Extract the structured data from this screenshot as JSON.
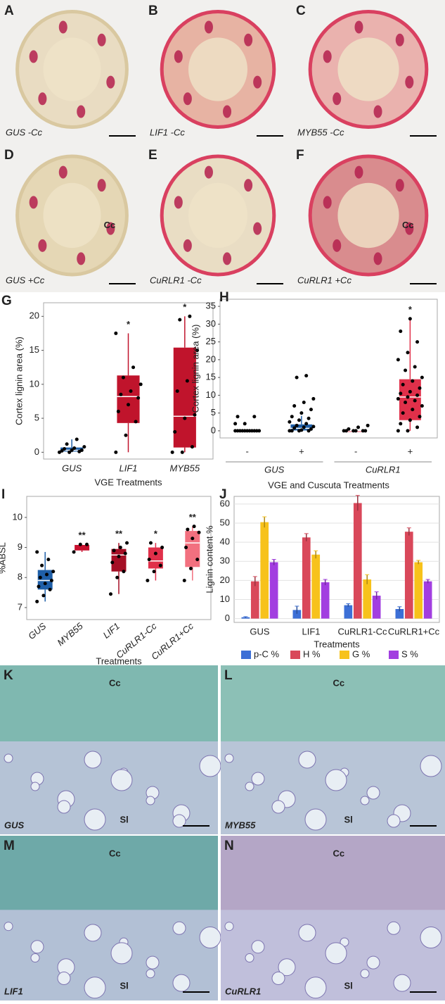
{
  "photos": [
    {
      "letter": "A",
      "caption": "GUS -Cc"
    },
    {
      "letter": "B",
      "caption": "LIF1 -Cc"
    },
    {
      "letter": "C",
      "caption": "MYB55 -Cc"
    },
    {
      "letter": "D",
      "caption": "GUS +Cc",
      "marks": [
        "Cc"
      ]
    },
    {
      "letter": "E",
      "caption": "CuRLR1 -Cc"
    },
    {
      "letter": "F",
      "caption": "CuRLR1 +Cc",
      "marks": [
        "Cc"
      ]
    }
  ],
  "micrographs": [
    {
      "letter": "K",
      "caption": "GUS",
      "marks": [
        "Cc",
        "Sl"
      ]
    },
    {
      "letter": "L",
      "caption": "MYB55",
      "marks": [
        "Cc",
        "Sl"
      ]
    },
    {
      "letter": "M",
      "caption": "LIF1",
      "marks": [
        "Cc",
        "Sl"
      ]
    },
    {
      "letter": "N",
      "caption": "CuRLR1",
      "marks": [
        "Cc",
        "Sl"
      ]
    }
  ],
  "chart_data": [
    {
      "type": "box",
      "letter": "G",
      "ylabel": "Cortex lignin area (%)",
      "xlabel": "VGE Treatments",
      "categories": [
        "GUS",
        "LIF1",
        "MYB55"
      ],
      "colors": [
        "#1f5fa8",
        "#c0142c",
        "#c0142c"
      ],
      "boxes": [
        {
          "min": 0,
          "q1": 0.1,
          "median": 0.3,
          "q3": 0.7,
          "max": 1.9
        },
        {
          "min": 0,
          "q1": 4.3,
          "median": 8.2,
          "q3": 11.3,
          "max": 17.5
        },
        {
          "min": 0,
          "q1": 0.7,
          "median": 5.3,
          "q3": 15.4,
          "max": 20
        }
      ],
      "points": [
        [
          0,
          0,
          0.1,
          0.2,
          0.3,
          0.3,
          0.5,
          0.6,
          0.8,
          1.2,
          1.9
        ],
        [
          0,
          2.5,
          4.5,
          6,
          7,
          8,
          8.5,
          9,
          10,
          11,
          12.5,
          17.5
        ],
        [
          0,
          0,
          0.8,
          3,
          5,
          5.5,
          9,
          10.5,
          15,
          19.5,
          20
        ]
      ],
      "annotations": [
        null,
        "*",
        "*"
      ],
      "ylim": [
        -1,
        22
      ],
      "yticks": [
        0,
        5,
        10,
        15,
        20
      ]
    },
    {
      "type": "box",
      "letter": "H",
      "ylabel": "Cortex lignin area (%)",
      "xlabel": "VGE and Cuscuta Treatments",
      "categories": [
        "-",
        "+",
        "-",
        "+"
      ],
      "groups": [
        "GUS",
        "CuRLR1"
      ],
      "colors": [
        "#1f5fa8",
        "#1f5fa8",
        "#e0304a",
        "#e0304a"
      ],
      "boxes": [
        {
          "min": 0,
          "q1": 0,
          "median": 0,
          "q3": 0,
          "max": 0
        },
        {
          "min": 0,
          "q1": 0.1,
          "median": 0.7,
          "q3": 1.8,
          "max": 4.2
        },
        {
          "min": 0,
          "q1": 0,
          "median": 0,
          "q3": 0,
          "max": 0
        },
        {
          "min": 0,
          "q1": 3,
          "median": 9.5,
          "q3": 14.5,
          "max": 31.5
        }
      ],
      "points": [
        [
          0,
          0,
          0,
          0,
          0,
          0,
          0,
          0,
          0,
          0,
          0,
          2,
          2,
          4,
          4
        ],
        [
          0,
          0,
          0,
          0,
          0.2,
          0.5,
          0.8,
          1,
          1.2,
          1.5,
          2,
          2.5,
          3,
          3.5,
          4,
          5,
          6,
          7,
          8,
          9,
          15,
          15.5
        ],
        [
          0,
          0,
          0,
          0,
          0,
          0,
          0.5,
          1,
          1.5
        ],
        [
          0,
          0,
          1,
          2,
          3,
          4,
          5,
          6,
          7,
          8,
          8.5,
          9,
          9.5,
          10,
          10.5,
          11,
          12,
          13,
          14,
          15,
          17,
          18,
          20,
          22,
          25,
          28,
          31.5
        ]
      ],
      "annotations": [
        null,
        null,
        null,
        "*"
      ],
      "ylim": [
        -2,
        37
      ],
      "yticks": [
        0,
        5,
        10,
        15,
        20,
        25,
        30,
        35
      ]
    },
    {
      "type": "box",
      "letter": "I",
      "ylabel": "%ABSL",
      "xlabel": "Treatments",
      "categories": [
        "GUS",
        "MYB55",
        "LIF1",
        "CuRLR1-Cc",
        "CuRLR1+Cc"
      ],
      "colors": [
        "#1f5fa8",
        "#c8102e",
        "#a50f25",
        "#e0304a",
        "#f2707f"
      ],
      "boxes": [
        {
          "min": 7.2,
          "q1": 7.6,
          "median": 7.9,
          "q3": 8.25,
          "max": 8.85
        },
        {
          "min": 8.85,
          "q1": 8.9,
          "median": 9.1,
          "q3": 9.1,
          "max": 9.1
        },
        {
          "min": 7.45,
          "q1": 8.2,
          "median": 8.75,
          "q3": 8.95,
          "max": 9.15
        },
        {
          "min": 7.9,
          "q1": 8.3,
          "median": 8.55,
          "q3": 9.0,
          "max": 9.15
        },
        {
          "min": 7.9,
          "q1": 8.35,
          "median": 9.15,
          "q3": 9.55,
          "max": 9.7
        }
      ],
      "points": [
        [
          7.2,
          7.4,
          7.6,
          7.7,
          7.8,
          7.9,
          8,
          8.1,
          8.2,
          8.4,
          8.6,
          8.85
        ],
        [
          8.85,
          9.1,
          9.1
        ],
        [
          7.45,
          8,
          8.2,
          8.5,
          8.7,
          8.8,
          8.9,
          9,
          9.15
        ],
        [
          7.9,
          8.2,
          8.4,
          8.6,
          8.8,
          9,
          9.15
        ],
        [
          7.9,
          8.3,
          8.6,
          9,
          9.3,
          9.5,
          9.6,
          9.7
        ]
      ],
      "annotations": [
        null,
        "**",
        "**",
        "*",
        "**"
      ],
      "ylim": [
        6.6,
        10.7
      ],
      "yticks": [
        7,
        8,
        9,
        10
      ]
    },
    {
      "type": "bar",
      "letter": "J",
      "ylabel": "Lignin content %",
      "xlabel": "Treatments",
      "categories": [
        "GUS",
        "LIF1",
        "CuRLR1-Cc",
        "CuRLR1+Cc"
      ],
      "series": [
        {
          "name": "p-C %",
          "color": "#3c6fd6",
          "values": [
            0.7,
            4.5,
            7,
            5
          ],
          "errors": [
            0.3,
            2,
            0.8,
            1.2
          ]
        },
        {
          "name": "H %",
          "color": "#d9485a",
          "values": [
            19.5,
            42.5,
            60.5,
            45.5
          ],
          "errors": [
            2.5,
            2,
            4,
            2
          ]
        },
        {
          "name": "G %",
          "color": "#f7c21b",
          "values": [
            50.5,
            33.5,
            20.5,
            29.5
          ],
          "errors": [
            2.8,
            2,
            2.5,
            1
          ]
        },
        {
          "name": "S %",
          "color": "#a23ee0",
          "values": [
            29.5,
            19,
            12,
            19.5
          ],
          "errors": [
            1.5,
            1.5,
            2,
            1
          ]
        }
      ],
      "ylim": [
        -2,
        64
      ],
      "yticks": [
        0,
        10,
        20,
        30,
        40,
        50,
        60
      ],
      "grid": true
    }
  ]
}
